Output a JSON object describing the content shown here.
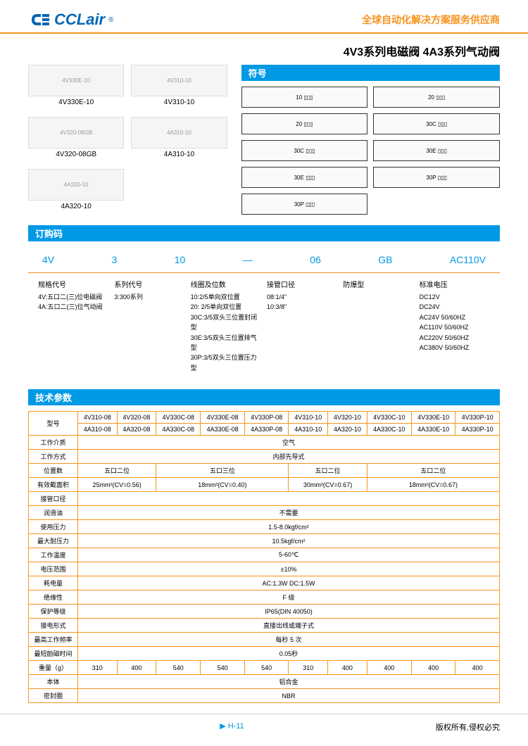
{
  "header": {
    "logo_text": "CCLair",
    "tagline": "全球自动化解决方案服务供应商"
  },
  "title": "4V3系列电磁阀  4A3系列气动阀",
  "sections": {
    "symbol": "符号",
    "order": "订购码",
    "spec": "技术参数"
  },
  "products": [
    {
      "name": "4V330E-10"
    },
    {
      "name": "4V310-10"
    },
    {
      "name": "4V320-08GB"
    },
    {
      "name": "4A310-10"
    },
    {
      "name": "4A320-10"
    }
  ],
  "symbols": [
    "10",
    "20",
    "20",
    "30C",
    "30C",
    "30E",
    "30E",
    "30P",
    "30P"
  ],
  "order_codes": [
    "4V",
    "3",
    "10",
    "—",
    "06",
    "GB",
    "AC110V"
  ],
  "order_cols": [
    {
      "title": "规格代号",
      "lines": [
        "4V:五口二(三)位电磁阀",
        "4A:五口二(三)位气动阀"
      ]
    },
    {
      "title": "系列代号",
      "lines": [
        "3:300系列"
      ]
    },
    {
      "title": "线圈及位数",
      "lines": [
        "10:2/5单向双位置",
        "20: 2/5单向双位置",
        "30C:3/5双头三位置封闭型",
        "30E:3/5双头三位置排气型",
        "30P:3/5双头三位置压力型"
      ]
    },
    {
      "title": "接管口径",
      "lines": [
        "08:1/4\"",
        "10:3/8\""
      ]
    },
    {
      "title": "防爆型",
      "lines": []
    },
    {
      "title": "标准电压",
      "lines": [
        "DC12V",
        "DC24V",
        "AC24V 50/60HZ",
        "AC110V 50/60HZ",
        "AC220V 50/60HZ",
        "AC380V 50/60HZ"
      ]
    }
  ],
  "spec": {
    "models_row1": [
      "4V310-08",
      "4V320-08",
      "4V330C-08",
      "4V330E-08",
      "4V330P-08",
      "4V310-10",
      "4V320-10",
      "4V330C-10",
      "4V330E-10",
      "4V330P-10"
    ],
    "models_row2": [
      "4A310-08",
      "4A320-08",
      "4A330C-08",
      "4A330E-08",
      "4A330P-08",
      "4A310-10",
      "4A320-10",
      "4A330C-10",
      "4A330E-10",
      "4A330P-10"
    ],
    "rows": [
      {
        "label": "型号",
        "type": "models"
      },
      {
        "label": "工作介质",
        "value": "空气",
        "span": 10
      },
      {
        "label": "工作方式",
        "value": "内部先导式",
        "span": 10
      },
      {
        "label": "位置数",
        "cells": [
          {
            "v": "五口二位",
            "s": 2
          },
          {
            "v": "五口三位",
            "s": 3
          },
          {
            "v": "五口二位",
            "s": 2
          },
          {
            "v": "五口二位",
            "s": 3
          }
        ]
      },
      {
        "label": "有效截面积",
        "cells": [
          {
            "v": "25mm²(CV=0.56)",
            "s": 2
          },
          {
            "v": "18mm²(CV=0.40)",
            "s": 3
          },
          {
            "v": "30mm²(CV=0.67)",
            "s": 2
          },
          {
            "v": "18mm²(CV=0.67)",
            "s": 3
          }
        ]
      },
      {
        "label": "接管口径",
        "value": "",
        "span": 10
      },
      {
        "label": "润滑油",
        "value": "不需要",
        "span": 10
      },
      {
        "label": "使用压力",
        "value": "1.5-8.0kgf/cm²",
        "span": 10
      },
      {
        "label": "最大耐压力",
        "value": "10.5kgf/cm²",
        "span": 10
      },
      {
        "label": "工作温度",
        "value": "5-60℃",
        "span": 10
      },
      {
        "label": "电压范围",
        "value": "±10%",
        "span": 10
      },
      {
        "label": "耗电量",
        "value": "AC:1.3W  DC:1.5W",
        "span": 10
      },
      {
        "label": "绝缘性",
        "value": "F 级",
        "span": 10
      },
      {
        "label": "保护等级",
        "value": "IP65(DIN 40050)",
        "span": 10
      },
      {
        "label": "接电形式",
        "value": "直接出线或端子式",
        "span": 10
      },
      {
        "label": "最高工作频率",
        "value": "每秒 5 次",
        "span": 10
      },
      {
        "label": "最短励磁时间",
        "value": "0.05秒",
        "span": 10
      },
      {
        "label": "重量（g）",
        "cells": [
          {
            "v": "310",
            "s": 1
          },
          {
            "v": "400",
            "s": 1
          },
          {
            "v": "540",
            "s": 1
          },
          {
            "v": "540",
            "s": 1
          },
          {
            "v": "540",
            "s": 1
          },
          {
            "v": "310",
            "s": 1
          },
          {
            "v": "400",
            "s": 1
          },
          {
            "v": "400",
            "s": 1
          },
          {
            "v": "400",
            "s": 1
          },
          {
            "v": "400",
            "s": 1
          }
        ]
      },
      {
        "label": "本体",
        "value": "铝合金",
        "span": 10
      },
      {
        "label": "密封圈",
        "value": "NBR",
        "span": 10
      }
    ]
  },
  "footer": {
    "page": "H-11",
    "copyright": "版权所有,侵权必究"
  },
  "colors": {
    "primary": "#0099e5",
    "accent": "#f7931e",
    "logo": "#0066b3"
  }
}
